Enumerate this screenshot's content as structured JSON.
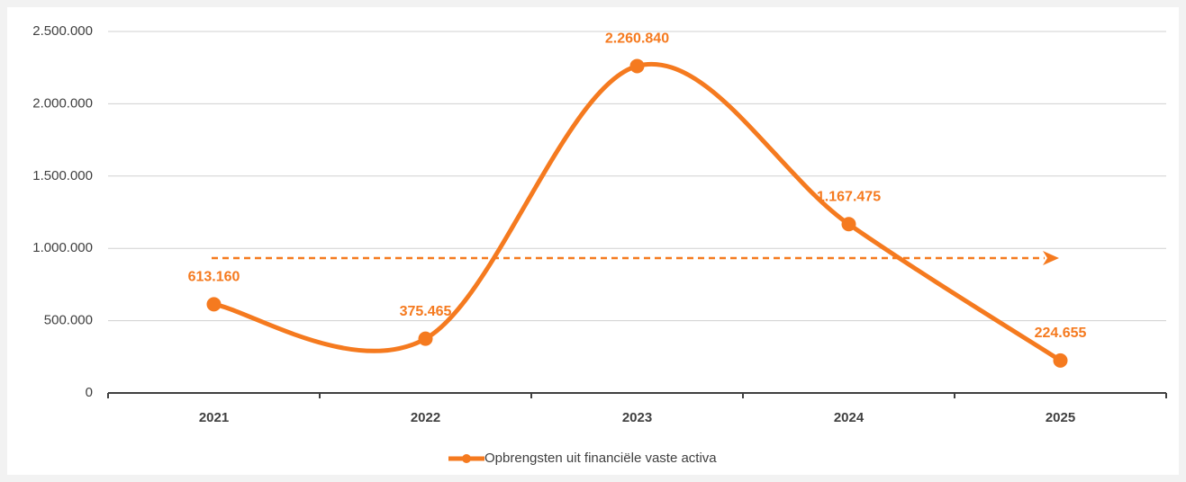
{
  "chart_data": {
    "type": "line",
    "categories": [
      "2021",
      "2022",
      "2023",
      "2024",
      "2025"
    ],
    "series": [
      {
        "name": "Opbrengsten uit financiële vaste activa",
        "color": "#f57a1f",
        "values": [
          613160,
          375465,
          2260840,
          1167475,
          224655
        ],
        "value_labels": [
          "613.160",
          "375.465",
          "2.260.840",
          "1.167.475",
          "224.655"
        ]
      }
    ],
    "ylim": [
      0,
      2500000
    ],
    "yticks": [
      0,
      {
        "value": 500000,
        "label": "500.000"
      },
      {
        "value": 1000000,
        "label": "1.000.000"
      },
      {
        "value": 1500000,
        "label": "1.500.000"
      },
      {
        "value": 2000000,
        "label": "2.000.000"
      },
      {
        "value": 2500000,
        "label": "2.500.000"
      }
    ],
    "grid": true,
    "smooth": true,
    "legend": "bottom"
  }
}
